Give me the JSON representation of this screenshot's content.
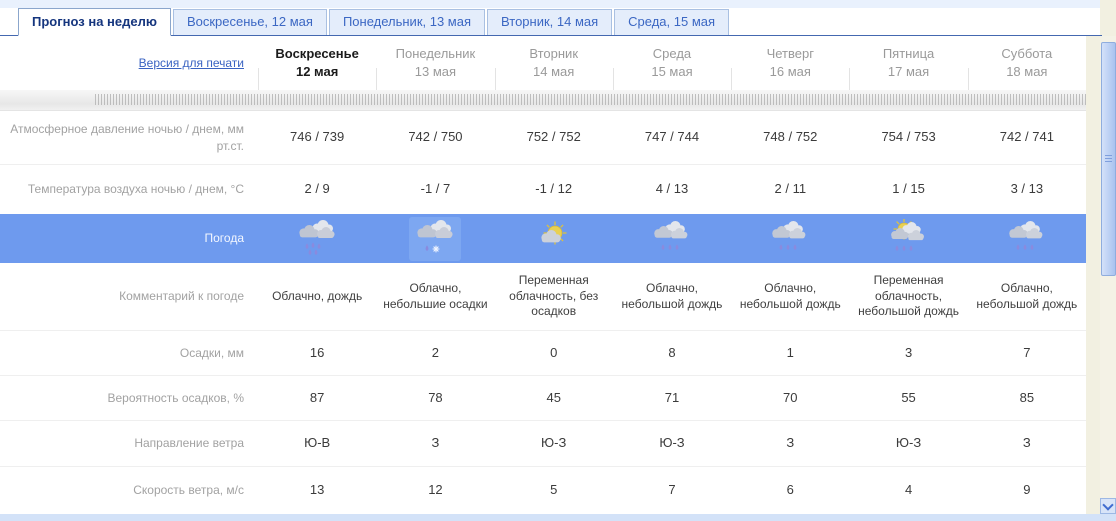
{
  "tabs": [
    {
      "label": "Прогноз на неделю"
    },
    {
      "label": "Воскресенье, 12 мая"
    },
    {
      "label": "Понедельник, 13 мая"
    },
    {
      "label": "Вторник, 14 мая"
    },
    {
      "label": "Среда, 15 мая"
    }
  ],
  "print_link": "Версия для печати",
  "days": [
    {
      "name": "Воскресенье",
      "date": "12 мая"
    },
    {
      "name": "Понедельник",
      "date": "13 мая"
    },
    {
      "name": "Вторник",
      "date": "14 мая"
    },
    {
      "name": "Среда",
      "date": "15 мая"
    },
    {
      "name": "Четверг",
      "date": "16 мая"
    },
    {
      "name": "Пятница",
      "date": "17 мая"
    },
    {
      "name": "Суббота",
      "date": "18 мая"
    }
  ],
  "rows": {
    "pressure": {
      "label": "Атмосферное давление ночью / днем, мм рт.ст.",
      "values": [
        "746 / 739",
        "742 / 750",
        "752 / 752",
        "747 / 744",
        "748 / 752",
        "754 / 753",
        "742 / 741"
      ]
    },
    "temperature": {
      "label": "Температура воздуха ночью / днем, °C",
      "values": [
        "2 / 9",
        "-1 / 7",
        "-1 / 12",
        "4 / 13",
        "2 / 11",
        "1 / 15",
        "3 / 13"
      ]
    },
    "weather": {
      "label": "Погода",
      "icons": [
        "rain-heavy",
        "rain-snow",
        "sun-cloud",
        "cloud-rain",
        "cloud-rain",
        "sun-cloud-rain",
        "cloud-rain"
      ]
    },
    "comment": {
      "label": "Комментарий к погоде",
      "values": [
        "Облачно, дождь",
        "Облачно, небольшие осадки",
        "Переменная облачность, без осадков",
        "Облачно, небольшой дождь",
        "Облачно, небольшой дождь",
        "Переменная облачность, небольшой дождь",
        "Облачно, небольшой дождь"
      ]
    },
    "precipitation": {
      "label": "Осадки, мм",
      "values": [
        "16",
        "2",
        "0",
        "8",
        "1",
        "3",
        "7"
      ]
    },
    "precip_probability": {
      "label": "Вероятность осадков, %",
      "values": [
        "87",
        "78",
        "45",
        "71",
        "70",
        "55",
        "85"
      ]
    },
    "wind_direction": {
      "label": "Направление ветра",
      "values": [
        "Ю-В",
        "З",
        "Ю-З",
        "Ю-З",
        "З",
        "Ю-З",
        "З"
      ]
    },
    "wind_speed": {
      "label": "Скорость ветра, м/с",
      "values": [
        "13",
        "12",
        "5",
        "7",
        "6",
        "4",
        "9"
      ]
    }
  },
  "colors": {
    "weather_row_bg": "#6e9aee",
    "active_tab_text": "#15357e",
    "tab_bar_line": "#4468b0",
    "link": "#3a63c2"
  }
}
